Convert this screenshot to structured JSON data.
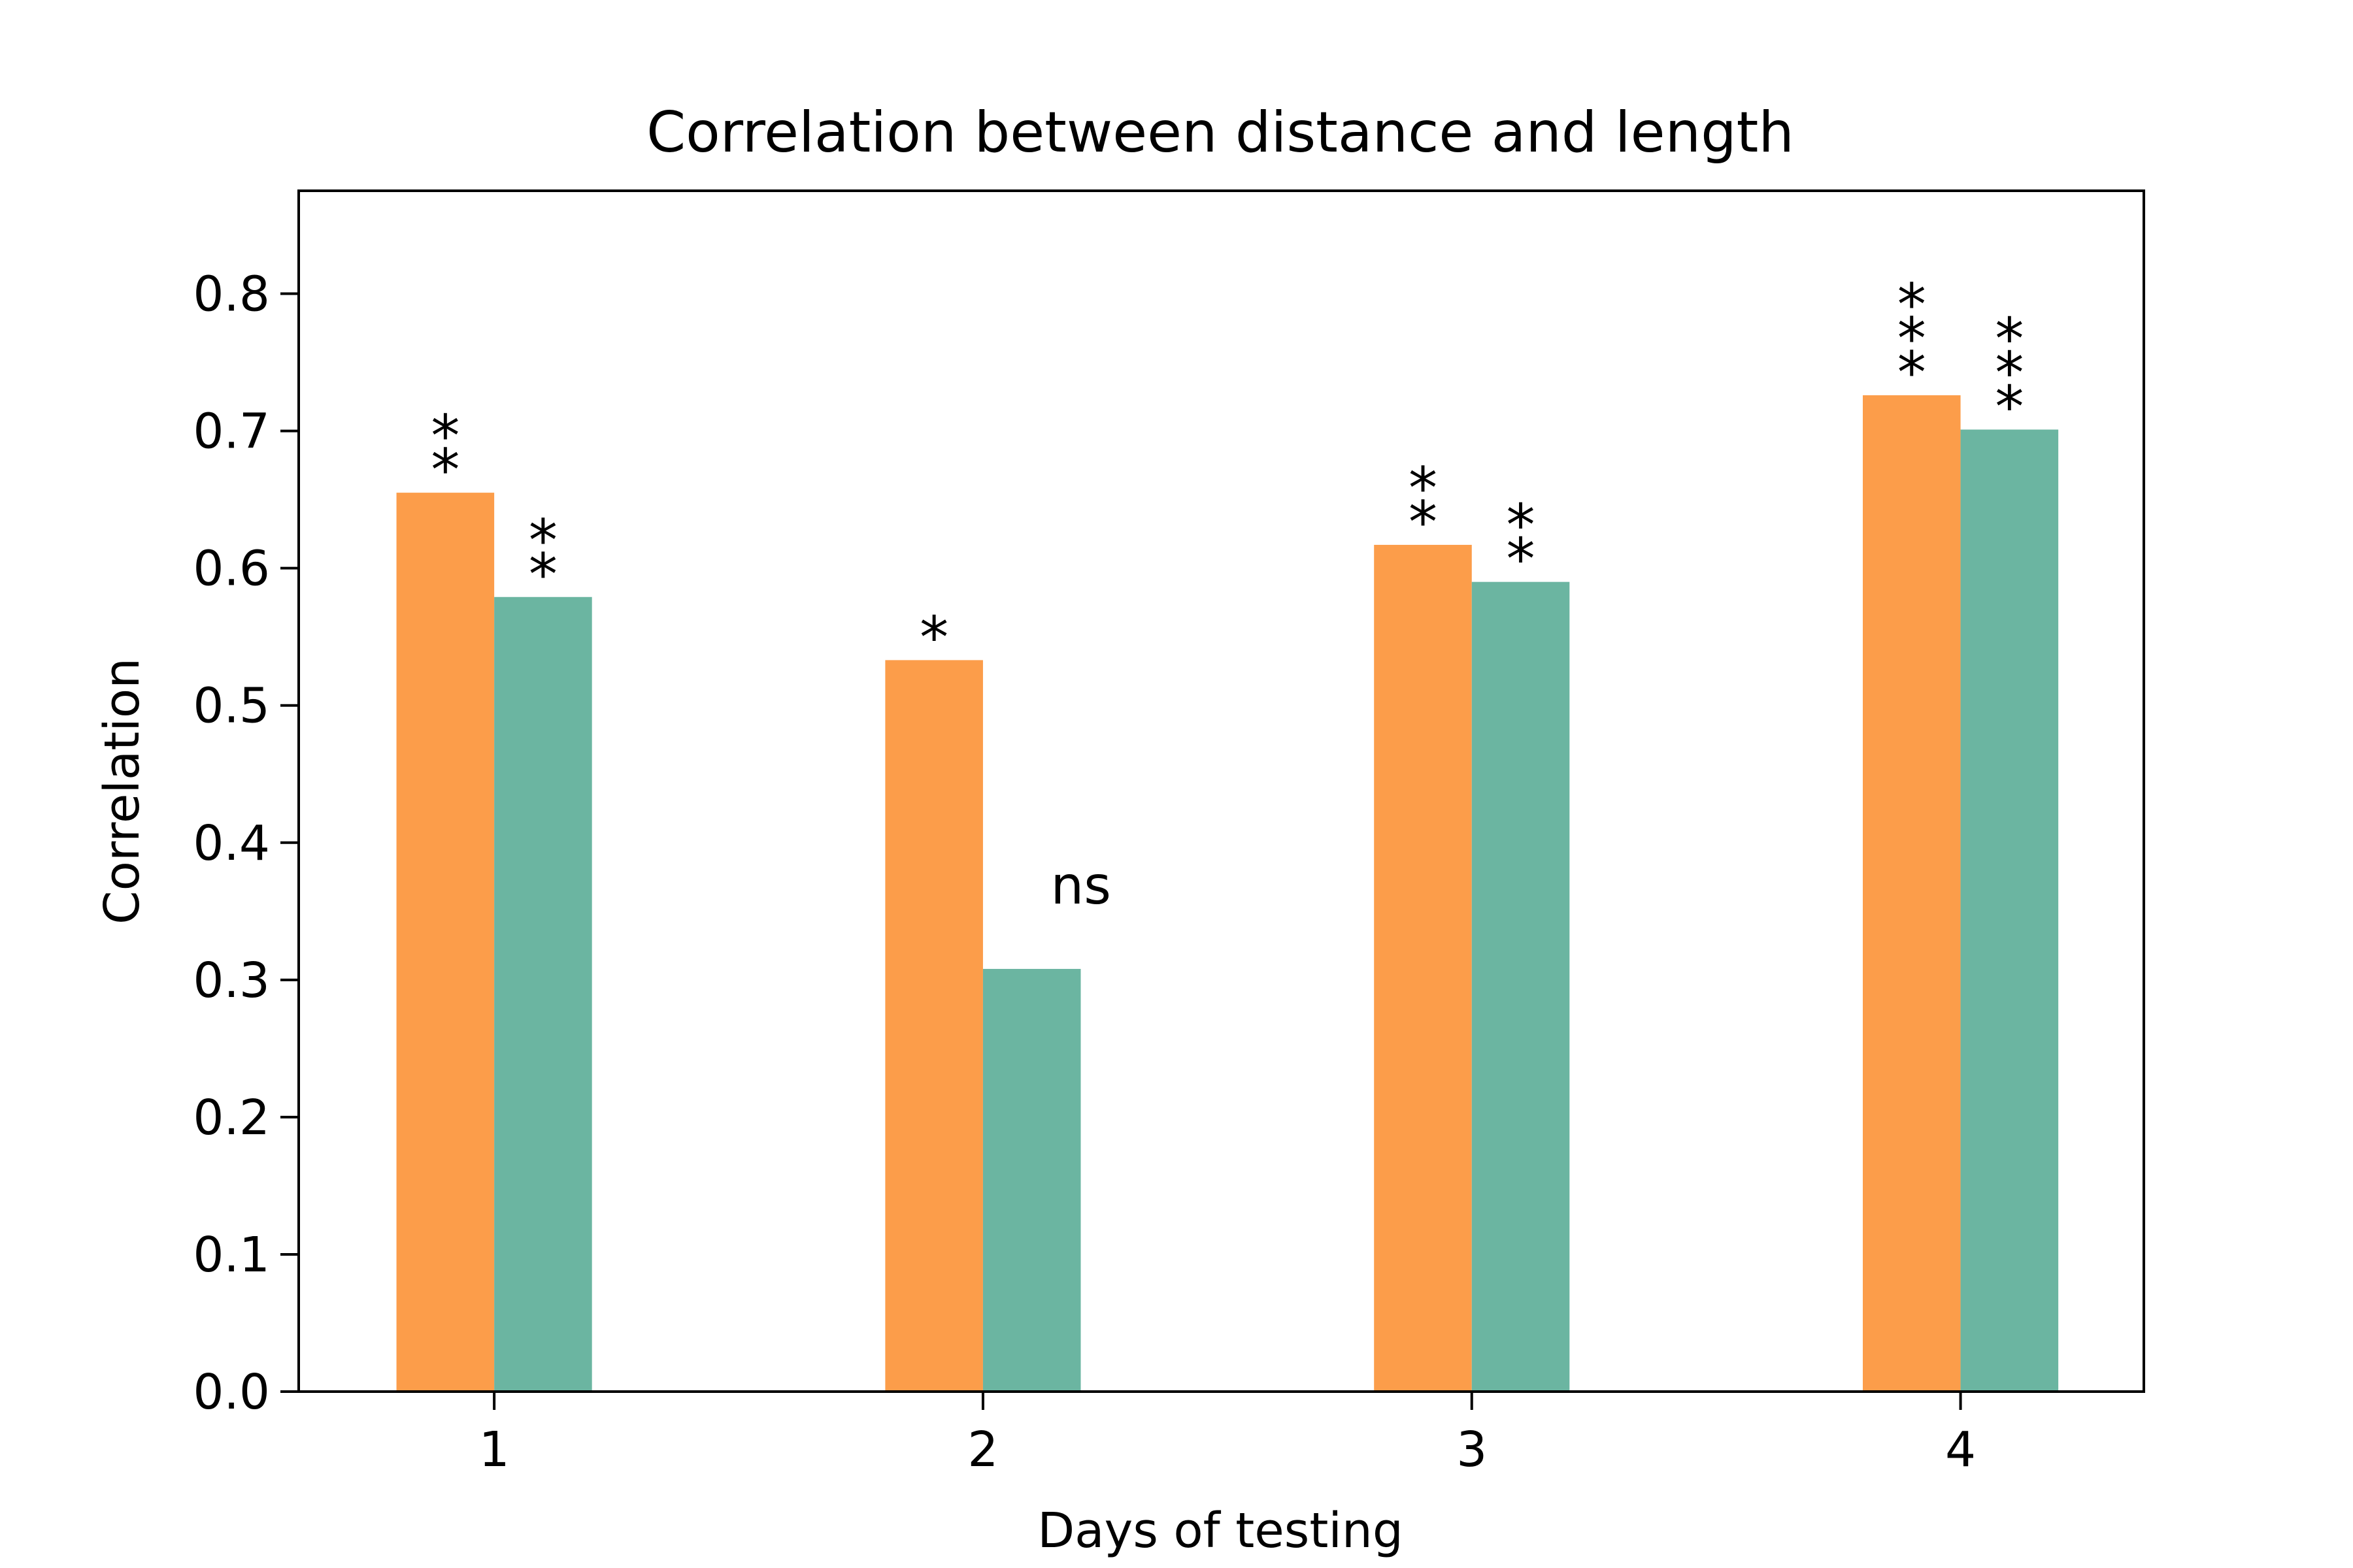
{
  "chart_data": {
    "type": "bar",
    "title": "Correlation between distance and length",
    "xlabel": "Days of testing",
    "ylabel": "Correlation",
    "categories": [
      "1",
      "2",
      "3",
      "4"
    ],
    "series": [
      {
        "color": "#fc9d4a",
        "values": [
          0.655,
          0.533,
          0.617,
          0.726
        ]
      },
      {
        "color": "#6bb5a1",
        "values": [
          0.579,
          0.308,
          0.59,
          0.701
        ]
      }
    ],
    "annotations": [
      [
        "**",
        "**"
      ],
      [
        "*",
        "ns"
      ],
      [
        "**",
        "**"
      ],
      [
        "***",
        "***"
      ]
    ],
    "ylim": [
      0,
      0.875
    ],
    "yticks": [
      "0.0",
      "0.1",
      "0.2",
      "0.3",
      "0.4",
      "0.5",
      "0.6",
      "0.7",
      "0.8"
    ],
    "grid": false,
    "legend": false
  }
}
